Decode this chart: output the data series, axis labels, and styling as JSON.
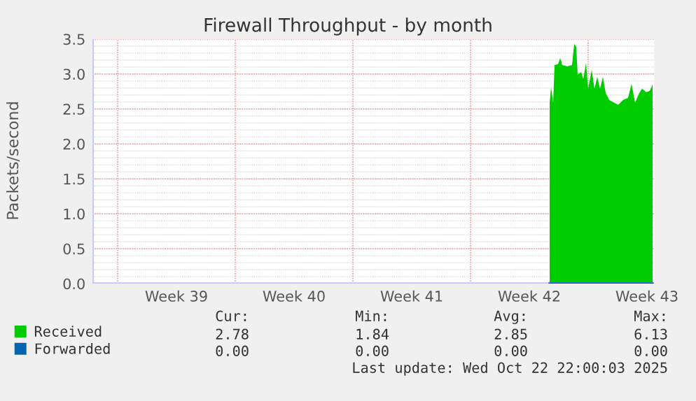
{
  "chart_data": {
    "type": "area",
    "title": "Firewall Throughput - by month",
    "ylabel": "Packets/second",
    "xlim": [
      "2025-09-19T12:00",
      "2025-10-22T22:00"
    ],
    "ylim": [
      0,
      3.5
    ],
    "yticks": [
      {
        "value": 0,
        "label": "0.0"
      },
      0.5,
      {
        "value": 1,
        "label": "1.0"
      },
      1.5,
      {
        "value": 2,
        "label": "2.0"
      },
      2.5,
      {
        "value": 3,
        "label": "3.0"
      },
      3.5
    ],
    "xticks": [
      {
        "value": "2025-09-21",
        "label": null
      },
      {
        "value": "2025-09-24T12:00",
        "label": "Week 39"
      },
      {
        "value": "2025-09-28",
        "label": null
      },
      {
        "value": "2025-10-01T12:00",
        "label": "Week 40"
      },
      {
        "value": "2025-10-05",
        "label": null
      },
      {
        "value": "2025-10-08T12:00",
        "label": "Week 41"
      },
      {
        "value": "2025-10-12",
        "label": null
      },
      {
        "value": "2025-10-15T12:00",
        "label": "Week 42"
      },
      {
        "value": "2025-10-19",
        "label": null
      },
      {
        "value": "2025-10-22T12:00",
        "label": "Week 43"
      }
    ],
    "grid": true,
    "legend": "bottom left",
    "series": [
      {
        "name": "Received",
        "color": "#00cc00",
        "x": [
          "2025-10-16T17:00",
          "2025-10-16T19:00",
          "2025-10-16T22:00",
          "2025-10-17T00:00",
          "2025-10-17T05:00",
          "2025-10-17T08:00",
          "2025-10-17T11:00",
          "2025-10-17T18:00",
          "2025-10-18T01:00",
          "2025-10-18T04:00",
          "2025-10-18T07:00",
          "2025-10-18T09:00",
          "2025-10-18T14:00",
          "2025-10-18T17:00",
          "2025-10-18T21:00",
          "2025-10-19T00:00",
          "2025-10-19T05:00",
          "2025-10-19T09:00",
          "2025-10-19T13:00",
          "2025-10-19T17:00",
          "2025-10-19T21:00",
          "2025-10-20T01:00",
          "2025-10-20T06:00",
          "2025-10-20T13:00",
          "2025-10-20T19:00",
          "2025-10-21T02:00",
          "2025-10-21T09:00",
          "2025-10-21T14:00",
          "2025-10-21T19:00",
          "2025-10-22T01:00",
          "2025-10-22T05:00",
          "2025-10-22T11:00",
          "2025-10-22T16:00",
          "2025-10-22T20:00"
        ],
        "values": [
          2.59,
          2.81,
          2.59,
          3.13,
          3.14,
          3.23,
          3.13,
          3.11,
          3.13,
          3.43,
          3.39,
          2.99,
          3.03,
          2.93,
          3.16,
          2.79,
          3.06,
          2.79,
          2.96,
          2.79,
          2.96,
          2.73,
          2.63,
          2.59,
          2.56,
          2.63,
          2.66,
          2.86,
          2.59,
          2.73,
          2.79,
          2.74,
          2.76,
          2.85
        ]
      },
      {
        "name": "Forwarded",
        "color": "#0066b3",
        "type": "line",
        "x": [
          "2025-10-16T17:00",
          "2025-10-22T20:00"
        ],
        "values": [
          0,
          0
        ]
      }
    ],
    "annotations": [
      "Cur:",
      "Min:",
      "Avg:",
      "Max:",
      "2.78",
      "1.84",
      "2.85",
      "6.13",
      "0.00",
      "0.00",
      "0.00",
      "0.00",
      "Last update: Wed Oct 22 22:00:03 2025"
    ]
  }
}
